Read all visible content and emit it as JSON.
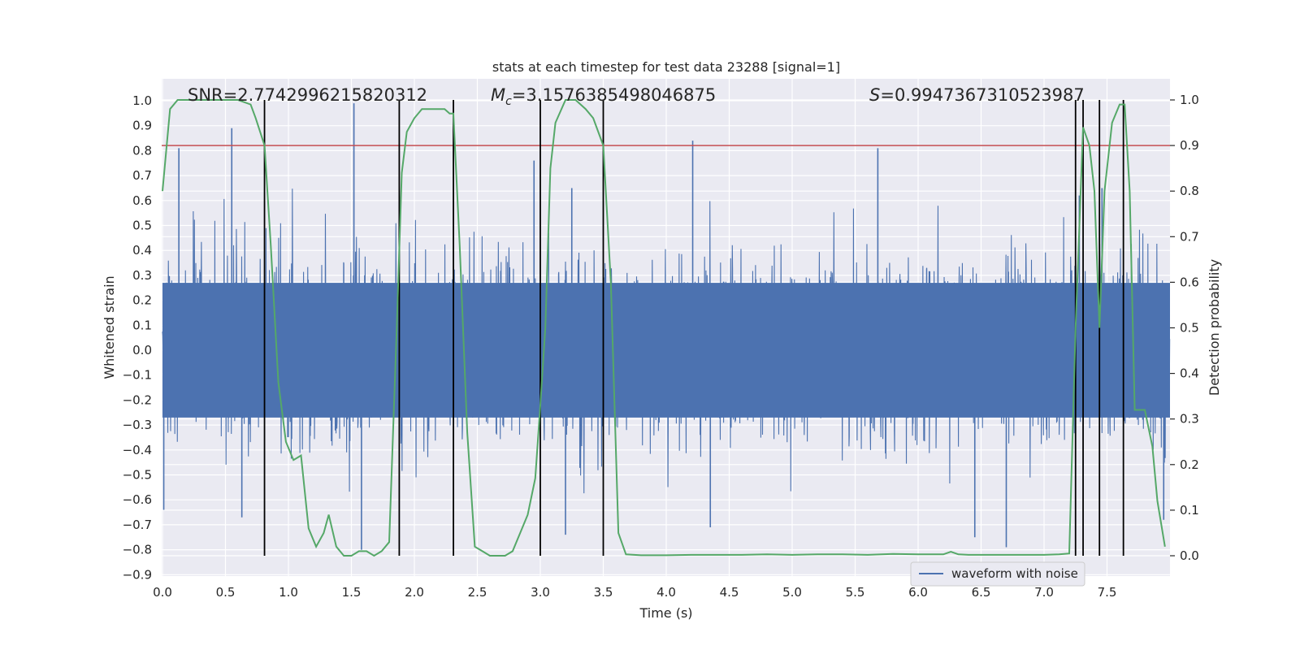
{
  "chart_data": {
    "type": "line",
    "title": "stats at each timestep for test data 23288 [signal=1]",
    "xlabel": "Time (s)",
    "ylabel": "Whitened strain",
    "y2label": "Detection probability",
    "xlim": [
      0.0,
      8.0
    ],
    "ylim": [
      -0.9,
      1.0
    ],
    "y2lim": [
      0.0,
      1.0
    ],
    "x_ticks": [
      "0.0",
      "0.5",
      "1.0",
      "1.5",
      "2.0",
      "2.5",
      "3.0",
      "3.5",
      "4.0",
      "4.5",
      "5.0",
      "5.5",
      "6.0",
      "6.5",
      "7.0",
      "7.5"
    ],
    "y_ticks": [
      "−0.9",
      "−0.8",
      "−0.7",
      "−0.6",
      "−0.5",
      "−0.4",
      "−0.3",
      "−0.2",
      "−0.1",
      "0.0",
      "0.1",
      "0.2",
      "0.3",
      "0.4",
      "0.5",
      "0.6",
      "0.7",
      "0.8",
      "0.9",
      "1.0"
    ],
    "y2_ticks": [
      "0.0",
      "0.1",
      "0.2",
      "0.3",
      "0.4",
      "0.5",
      "0.6",
      "0.7",
      "0.8",
      "0.9",
      "1.0"
    ],
    "grid": true,
    "legend": {
      "position": "bottom-right",
      "entries": [
        "waveform with noise"
      ]
    },
    "annotations": {
      "snr": "SNR=2.7742996215820312",
      "mc_symbol": "M",
      "mc_sub": "c",
      "mc_value": "=3.1576385498046875",
      "s_symbol": "S",
      "s_value": "=0.9947367310523987"
    },
    "threshold": {
      "axis": "y2",
      "value": 0.9
    },
    "vertical_lines": [
      0.81,
      1.88,
      2.31,
      3.0,
      3.5,
      7.25,
      7.31,
      7.44,
      7.63
    ],
    "waveform": {
      "name": "waveform with noise",
      "duration": 8.0,
      "core_band": [
        -0.27,
        0.27
      ],
      "spikes": [
        [
          0.01,
          -0.64
        ],
        [
          0.13,
          0.81
        ],
        [
          0.55,
          0.89
        ],
        [
          0.63,
          -0.67
        ],
        [
          1.52,
          0.99
        ],
        [
          1.58,
          -0.8
        ],
        [
          2.95,
          0.76
        ],
        [
          3.2,
          -0.74
        ],
        [
          3.25,
          0.65
        ],
        [
          4.21,
          0.84
        ],
        [
          4.35,
          -0.71
        ],
        [
          5.68,
          0.81
        ],
        [
          6.45,
          -0.75
        ],
        [
          6.7,
          -0.79
        ],
        [
          7.28,
          0.62
        ],
        [
          7.46,
          0.65
        ],
        [
          7.95,
          -0.68
        ]
      ]
    },
    "series": [
      {
        "name": "detection probability",
        "axis": "y2",
        "x": [
          0.0,
          0.06,
          0.12,
          0.2,
          0.3,
          0.4,
          0.5,
          0.6,
          0.7,
          0.74,
          0.81,
          0.86,
          0.92,
          0.98,
          1.04,
          1.1,
          1.16,
          1.22,
          1.28,
          1.32,
          1.38,
          1.44,
          1.5,
          1.56,
          1.62,
          1.68,
          1.74,
          1.8,
          1.86,
          1.9,
          1.94,
          2.0,
          2.06,
          2.12,
          2.18,
          2.24,
          2.28,
          2.31,
          2.36,
          2.42,
          2.48,
          2.54,
          2.6,
          2.66,
          2.72,
          2.78,
          2.84,
          2.9,
          2.96,
          3.0,
          3.04,
          3.08,
          3.12,
          3.2,
          3.28,
          3.36,
          3.42,
          3.5,
          3.56,
          3.62,
          3.68,
          3.8,
          4.0,
          4.2,
          4.4,
          4.6,
          4.8,
          5.0,
          5.2,
          5.4,
          5.6,
          5.8,
          6.0,
          6.1,
          6.2,
          6.26,
          6.32,
          6.4,
          6.6,
          6.8,
          7.0,
          7.12,
          7.2,
          7.25,
          7.31,
          7.36,
          7.4,
          7.44,
          7.48,
          7.54,
          7.6,
          7.64,
          7.68,
          7.72,
          7.76,
          7.8,
          7.86,
          7.9,
          7.96
        ],
        "y": [
          0.8,
          0.98,
          1.0,
          1.0,
          1.0,
          1.0,
          1.0,
          1.0,
          0.99,
          0.96,
          0.9,
          0.68,
          0.38,
          0.25,
          0.21,
          0.22,
          0.06,
          0.02,
          0.05,
          0.09,
          0.02,
          0.0,
          0.0,
          0.01,
          0.01,
          0.0,
          0.01,
          0.03,
          0.5,
          0.84,
          0.93,
          0.96,
          0.98,
          0.98,
          0.98,
          0.98,
          0.97,
          0.97,
          0.68,
          0.27,
          0.02,
          0.01,
          0.0,
          0.0,
          0.0,
          0.01,
          0.05,
          0.09,
          0.17,
          0.33,
          0.5,
          0.85,
          0.95,
          1.0,
          1.0,
          0.98,
          0.96,
          0.9,
          0.6,
          0.05,
          0.003,
          0.001,
          0.001,
          0.002,
          0.002,
          0.002,
          0.003,
          0.002,
          0.003,
          0.003,
          0.002,
          0.004,
          0.003,
          0.003,
          0.003,
          0.009,
          0.003,
          0.002,
          0.002,
          0.002,
          0.002,
          0.003,
          0.005,
          0.5,
          0.94,
          0.9,
          0.8,
          0.5,
          0.8,
          0.95,
          0.99,
          0.99,
          0.8,
          0.32,
          0.32,
          0.32,
          0.24,
          0.12,
          0.02
        ]
      }
    ]
  }
}
